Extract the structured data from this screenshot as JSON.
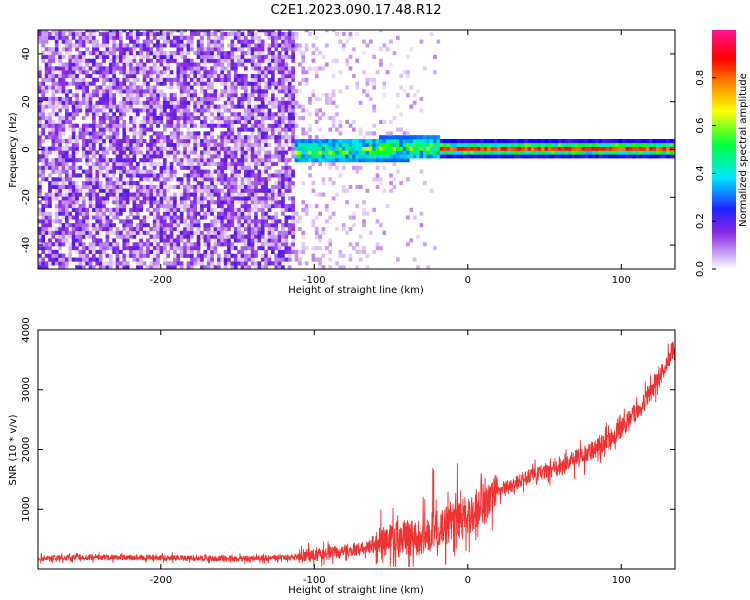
{
  "title": "C2E1.2023.090.17.48.R12",
  "chart_data": [
    {
      "type": "heatmap",
      "title": "C2E1.2023.090.17.48.R12",
      "xlabel": "Height of straight line (km)",
      "ylabel": "Frequency (Hz)",
      "xlim": [
        -280,
        135
      ],
      "ylim": [
        -50,
        50
      ],
      "xticks": [
        -200,
        -100,
        0,
        100
      ],
      "yticks": [
        40,
        20,
        0,
        -20,
        -40
      ],
      "colorbar": {
        "label": "Normalized spectral amplitude",
        "range": [
          0,
          1
        ],
        "ticks": [
          0.0,
          0.2,
          0.4,
          0.6,
          0.8
        ],
        "colormap": [
          "#ffffff",
          "#8a2be2",
          "#0000ff",
          "#00e5ff",
          "#00ff00",
          "#ffff00",
          "#ff8000",
          "#ff0000",
          "#ff1493"
        ]
      },
      "features": [
        {
          "x_range": [
            -280,
            -115
          ],
          "frequency_range": [
            -50,
            50
          ],
          "amplitude": 0.12
        },
        {
          "x_range": [
            -115,
            -20
          ],
          "frequency_range": [
            -50,
            50
          ],
          "amplitude": 0.03
        },
        {
          "x_range": [
            -115,
            -20
          ],
          "frequency_range": [
            -6,
            4
          ],
          "amplitude": 0.4
        },
        {
          "x_range": [
            -20,
            135
          ],
          "frequency_range": [
            -2,
            2
          ],
          "amplitude": 0.85
        }
      ]
    },
    {
      "type": "line",
      "xlabel": "Height of straight line (km)",
      "ylabel": "SNR (10 * v/v)",
      "xlim": [
        -280,
        135
      ],
      "ylim": [
        0,
        4000
      ],
      "xticks": [
        -200,
        -100,
        0,
        100
      ],
      "yticks": [
        1000,
        2000,
        3000,
        4000
      ],
      "series": [
        {
          "color": "#ef3333",
          "x": [
            -280,
            -250,
            -200,
            -150,
            -120,
            -100,
            -80,
            -60,
            -40,
            -20,
            -10,
            0,
            10,
            20,
            40,
            60,
            80,
            100,
            115,
            125,
            135
          ],
          "y": [
            180,
            200,
            190,
            170,
            190,
            230,
            300,
            380,
            500,
            650,
            780,
            900,
            1050,
            1300,
            1550,
            1700,
            1950,
            2350,
            2800,
            3200,
            3750
          ]
        }
      ]
    }
  ]
}
